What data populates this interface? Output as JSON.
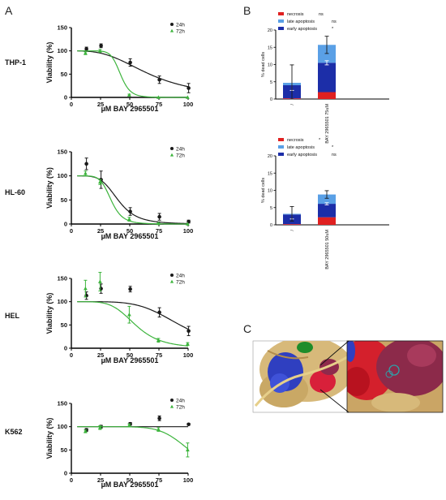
{
  "panels": {
    "a": "A",
    "b": "B",
    "c": "C"
  },
  "colors": {
    "h24": "#1a1a1a",
    "h72": "#3cb43c",
    "necrosis": "#e02020",
    "late": "#5aa0e6",
    "early": "#1c2ea8"
  },
  "chart_data": [
    {
      "type": "scatter",
      "row_label": "THP-1",
      "ylabel": "Viability (%)",
      "xlabel": "µM BAY 2965501",
      "xlim": [
        0,
        100
      ],
      "ylim": [
        0,
        150
      ],
      "xticks": [
        "0",
        "25",
        "50",
        "75",
        "100"
      ],
      "yticks": [
        "0",
        "50",
        "100",
        "150"
      ],
      "legend": "top-right",
      "series": [
        {
          "name": "24h",
          "color": "#1a1a1a",
          "x": [
            12.5,
            25,
            50,
            75,
            100
          ],
          "y": [
            104,
            111,
            75,
            38,
            20
          ],
          "err": [
            4,
            4,
            8,
            8,
            10
          ],
          "fit": {
            "ic50": 67,
            "hill": 3
          }
        },
        {
          "name": "72h",
          "color": "#3cb43c",
          "x": [
            12.5,
            25,
            50,
            75,
            100
          ],
          "y": [
            95,
            100,
            5,
            0,
            0
          ],
          "err": [
            3,
            3,
            2,
            0,
            0
          ],
          "fit": {
            "ic50": 42,
            "hill": 10
          }
        }
      ]
    },
    {
      "type": "scatter",
      "row_label": "HL-60",
      "ylabel": "Viability (%)",
      "xlabel": "µM BAY 2965501",
      "xlim": [
        0,
        100
      ],
      "ylim": [
        0,
        150
      ],
      "xticks": [
        "0",
        "25",
        "50",
        "75",
        "100"
      ],
      "yticks": [
        "0",
        "50",
        "100",
        "150"
      ],
      "legend": "top-right",
      "series": [
        {
          "name": "24h",
          "color": "#1a1a1a",
          "x": [
            12.5,
            25,
            50,
            75,
            100
          ],
          "y": [
            125,
            92,
            26,
            15,
            5
          ],
          "err": [
            12,
            18,
            8,
            7,
            3
          ],
          "fit": {
            "ic50": 40,
            "hill": 5
          }
        },
        {
          "name": "72h",
          "color": "#3cb43c",
          "x": [
            12.5,
            25,
            50,
            75,
            100
          ],
          "y": [
            105,
            87,
            10,
            1,
            0
          ],
          "err": [
            5,
            5,
            4,
            1,
            0
          ],
          "fit": {
            "ic50": 34,
            "hill": 7
          }
        }
      ]
    },
    {
      "type": "scatter",
      "row_label": "HEL",
      "ylabel": "Viability (%)",
      "xlabel": "µM BAY 2965501",
      "xlim": [
        0,
        100
      ],
      "ylim": [
        0,
        150
      ],
      "xticks": [
        "0",
        "25",
        "50",
        "75",
        "100"
      ],
      "yticks": [
        "0",
        "50",
        "100",
        "150"
      ],
      "legend": "top-right",
      "series": [
        {
          "name": "24h",
          "color": "#1a1a1a",
          "x": [
            12.5,
            25,
            50,
            75,
            100
          ],
          "y": [
            113,
            128,
            127,
            77,
            37
          ],
          "err": [
            8,
            10,
            6,
            10,
            10
          ],
          "fit": {
            "ic50": 93,
            "hill": 5
          }
        },
        {
          "name": "72h",
          "color": "#3cb43c",
          "x": [
            12.5,
            25,
            50,
            75,
            100
          ],
          "y": [
            128,
            143,
            72,
            17,
            9
          ],
          "err": [
            18,
            20,
            18,
            4,
            3
          ],
          "fit": {
            "ic50": 55,
            "hill": 5
          }
        }
      ]
    },
    {
      "type": "scatter",
      "row_label": "K562",
      "ylabel": "Viability (%)",
      "xlabel": "µM BAY 2965501",
      "xlim": [
        0,
        100
      ],
      "ylim": [
        0,
        150
      ],
      "xticks": [
        "0",
        "25",
        "50",
        "75",
        "100"
      ],
      "yticks": [
        "0",
        "50",
        "100",
        "150"
      ],
      "legend": "top-right",
      "series": [
        {
          "name": "24h",
          "color": "#1a1a1a",
          "x": [
            12.5,
            25,
            50,
            75,
            100
          ],
          "y": [
            93,
            100,
            106,
            118,
            105
          ],
          "err": [
            3,
            3,
            3,
            5,
            2
          ],
          "fit": {
            "flat": 100
          }
        },
        {
          "name": "72h",
          "color": "#3cb43c",
          "x": [
            12.5,
            25,
            50,
            75,
            100
          ],
          "y": [
            90,
            98,
            103,
            94,
            50
          ],
          "err": [
            3,
            4,
            3,
            4,
            15
          ],
          "fit": {
            "ic50": 101,
            "hill": 8
          }
        }
      ]
    },
    {
      "type": "bar",
      "stacked": true,
      "ylabel": "% dead cells",
      "ylim": [
        0,
        20
      ],
      "yticks": [
        "0",
        "5",
        "10",
        "15",
        "20"
      ],
      "categories": [
        "/",
        "BAY 2965501 75uM"
      ],
      "legend": "top-right",
      "series": [
        {
          "name": "necrosis",
          "sig": "ns",
          "color": "#e02020",
          "values": [
            0.2,
            2.0
          ]
        },
        {
          "name": "early apoptosis",
          "sig": "*",
          "color": "#1c2ea8",
          "values": [
            3.8,
            8.5
          ]
        },
        {
          "name": "late apoptosis",
          "sig": "ns",
          "color": "#5aa0e6",
          "values": [
            0.7,
            5.2
          ]
        }
      ],
      "err": [
        [
          1.5,
          0.6
        ],
        [
          5.2,
          2.5
        ]
      ]
    },
    {
      "type": "bar",
      "stacked": true,
      "ylabel": "% dead cells",
      "ylim": [
        0,
        20
      ],
      "yticks": [
        "0",
        "5",
        "10",
        "15",
        "20"
      ],
      "categories": [
        "/",
        "BAY 2965501 50uM"
      ],
      "legend": "top-right",
      "series": [
        {
          "name": "necrosis",
          "sig": "*",
          "color": "#e02020",
          "values": [
            0.2,
            2.2
          ]
        },
        {
          "name": "early apoptosis",
          "sig": "ns",
          "color": "#1c2ea8",
          "values": [
            2.8,
            3.9
          ]
        },
        {
          "name": "late apoptosis",
          "sig": "*",
          "color": "#5aa0e6",
          "values": [
            0.2,
            2.7
          ]
        }
      ],
      "err": [
        [
          1.3,
          0.3
        ],
        [
          2.1,
          1.1
        ]
      ]
    }
  ]
}
